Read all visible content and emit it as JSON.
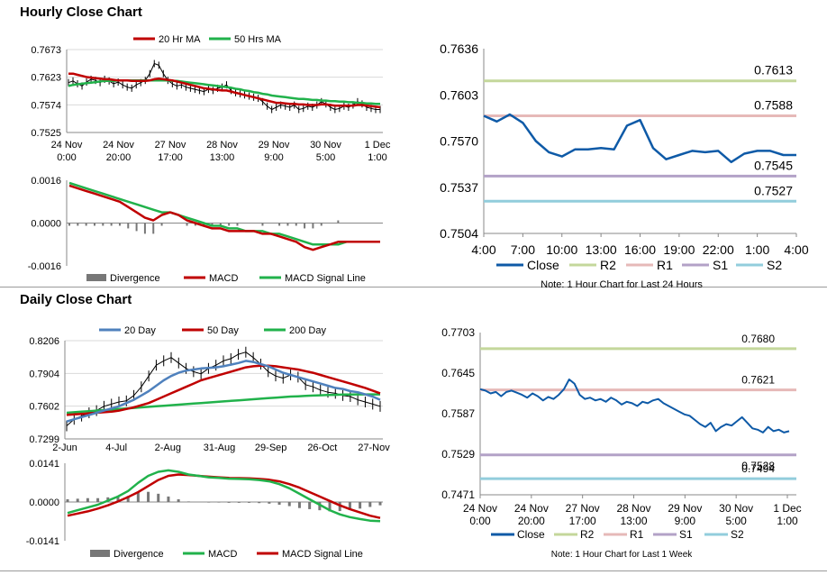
{
  "sections": {
    "hourly_title": "Hourly Close Chart",
    "daily_title": "Daily Close Chart"
  },
  "colors": {
    "red": "#c00000",
    "green": "#21b24b",
    "blue": "#4f81bd",
    "close": "#0e5aa7",
    "r2": "#c4d79b",
    "r1": "#e6b9b8",
    "s1": "#b3a2c7",
    "s2": "#92cddc",
    "div": "#777777"
  },
  "chart_data": [
    {
      "id": "hourly_price",
      "type": "line",
      "ylim": [
        0.7525,
        0.7673
      ],
      "yticks": [
        "0.7673",
        "0.7623",
        "0.7574",
        "0.7525"
      ],
      "xticks": [
        [
          "24 Nov",
          "0:00"
        ],
        [
          "24 Nov",
          "20:00"
        ],
        [
          "27 Nov",
          "17:00"
        ],
        [
          "28 Nov",
          "13:00"
        ],
        [
          "29 Nov",
          "9:00"
        ],
        [
          "30 Nov",
          "5:00"
        ],
        [
          "1 Dec",
          "1:00"
        ]
      ],
      "legend": [
        "20 Hr MA",
        "50 Hrs MA"
      ],
      "ohlc_close": [
        0.7614,
        0.7617,
        0.7612,
        0.7608,
        0.7615,
        0.762,
        0.7618,
        0.7614,
        0.762,
        0.7617,
        0.7612,
        0.7615,
        0.761,
        0.7606,
        0.7604,
        0.761,
        0.7614,
        0.7618,
        0.763,
        0.7648,
        0.7645,
        0.763,
        0.7618,
        0.7612,
        0.7608,
        0.761,
        0.7606,
        0.7604,
        0.7602,
        0.76,
        0.7598,
        0.7602,
        0.76,
        0.7604,
        0.7606,
        0.761,
        0.76,
        0.7596,
        0.7594,
        0.7592,
        0.759,
        0.7588,
        0.7586,
        0.758,
        0.7572,
        0.7566,
        0.757,
        0.7574,
        0.7572,
        0.757,
        0.7574,
        0.7566,
        0.7568,
        0.7572,
        0.757,
        0.7574,
        0.758,
        0.7576,
        0.757,
        0.7566,
        0.7568,
        0.7572,
        0.757,
        0.7574,
        0.758,
        0.7576,
        0.757,
        0.7568,
        0.7566,
        0.7566
      ],
      "ma20": [
        0.763,
        0.763,
        0.7628,
        0.7626,
        0.7624,
        0.7623,
        0.7622,
        0.7621,
        0.762,
        0.762,
        0.7619,
        0.7618,
        0.7618,
        0.7618,
        0.7617,
        0.7617,
        0.7617,
        0.7617,
        0.7618,
        0.762,
        0.7621,
        0.762,
        0.7619,
        0.7618,
        0.7616,
        0.7614,
        0.7612,
        0.761,
        0.7608,
        0.7606,
        0.7604,
        0.7603,
        0.7602,
        0.7601,
        0.76,
        0.76,
        0.7598,
        0.7596,
        0.7594,
        0.7592,
        0.759,
        0.7588,
        0.7586,
        0.7584,
        0.7582,
        0.758,
        0.7578,
        0.7578,
        0.7577,
        0.7576,
        0.7576,
        0.7575,
        0.7575,
        0.7574,
        0.7574,
        0.7574,
        0.7575,
        0.7575,
        0.7574,
        0.7573,
        0.7573,
        0.7573,
        0.7573,
        0.7573,
        0.7574,
        0.7574,
        0.7573,
        0.7572,
        0.7571,
        0.757
      ],
      "ma50": [
        0.7608,
        0.761,
        0.7611,
        0.7612,
        0.7613,
        0.7614,
        0.7615,
        0.7616,
        0.7617,
        0.7617,
        0.7617,
        0.7618,
        0.7618,
        0.7618,
        0.7618,
        0.7618,
        0.7618,
        0.7618,
        0.7618,
        0.7618,
        0.7618,
        0.7618,
        0.7618,
        0.7617,
        0.7617,
        0.7616,
        0.7615,
        0.7614,
        0.7613,
        0.7612,
        0.7611,
        0.761,
        0.7609,
        0.7608,
        0.7607,
        0.7606,
        0.7605,
        0.7603,
        0.7602,
        0.76,
        0.7599,
        0.7597,
        0.7596,
        0.7594,
        0.7593,
        0.7591,
        0.759,
        0.7589,
        0.7588,
        0.7587,
        0.7586,
        0.7585,
        0.7585,
        0.7584,
        0.7583,
        0.7583,
        0.7582,
        0.7582,
        0.7581,
        0.7581,
        0.758,
        0.758,
        0.7579,
        0.7579,
        0.7578,
        0.7578,
        0.7577,
        0.7577,
        0.7576,
        0.7576
      ]
    },
    {
      "id": "hourly_macd",
      "type": "line",
      "ylim": [
        -0.0016,
        0.0016
      ],
      "yticks": [
        "0.0016",
        "0.0000",
        "-0.0016"
      ],
      "legend": [
        "Divergence",
        "MACD",
        "MACD Signal Line"
      ],
      "macd": [
        0.0014,
        0.0013,
        0.0012,
        0.0011,
        0.001,
        0.0009,
        0.0008,
        0.0006,
        0.0004,
        0.0002,
        0.0001,
        0.0003,
        0.0004,
        0.0003,
        0.0001,
        0.0,
        -0.0001,
        -0.0002,
        -0.0002,
        -0.0003,
        -0.0003,
        -0.0003,
        -0.0003,
        -0.0004,
        -0.0004,
        -0.0005,
        -0.0006,
        -0.0007,
        -0.0009,
        -0.001,
        -0.0009,
        -0.0008,
        -0.0007,
        -0.0007,
        -0.0007,
        -0.0007,
        -0.0007,
        -0.0007
      ],
      "signal": [
        0.0015,
        0.0014,
        0.0013,
        0.0012,
        0.0011,
        0.001,
        0.0009,
        0.0008,
        0.0007,
        0.0006,
        0.0005,
        0.0004,
        0.0004,
        0.0003,
        0.0002,
        0.0001,
        0.0,
        -0.0001,
        -0.0001,
        -0.0002,
        -0.0002,
        -0.0003,
        -0.0003,
        -0.0003,
        -0.0004,
        -0.0004,
        -0.0005,
        -0.0006,
        -0.0007,
        -0.0008,
        -0.0008,
        -0.0008,
        -0.0008,
        -0.0007,
        -0.0007,
        -0.0007,
        -0.0007,
        -0.0007
      ],
      "divergence": [
        -0.0001,
        -0.0001,
        -0.0001,
        -0.0001,
        -0.0001,
        -0.0001,
        -0.0001,
        -0.0002,
        -0.0003,
        -0.0004,
        -0.0004,
        -0.0001,
        0.0,
        0.0,
        -0.0001,
        -0.0001,
        -0.0001,
        -0.0001,
        -0.0001,
        -0.0001,
        -0.0001,
        0.0,
        0.0,
        -0.0001,
        0.0,
        -0.0001,
        -0.0001,
        -0.0001,
        -0.0002,
        -0.0002,
        -0.0001,
        0.0,
        0.0001,
        0.0,
        0.0,
        0.0,
        0.0,
        0.0
      ]
    },
    {
      "id": "hourly_close",
      "type": "line",
      "ylim": [
        0.7504,
        0.7636
      ],
      "yticks": [
        "0.7636",
        "0.7603",
        "0.7570",
        "0.7537",
        "0.7504"
      ],
      "xticks": [
        "4:00",
        "7:00",
        "10:00",
        "13:00",
        "16:00",
        "19:00",
        "22:00",
        "1:00",
        "4:00"
      ],
      "legend": [
        "Close",
        "R2",
        "R1",
        "S1",
        "S2"
      ],
      "note": "Note: 1 Hour Chart for Last 24 Hours",
      "levels": [
        {
          "key": "r2",
          "value": 0.7613,
          "label": "0.7613"
        },
        {
          "key": "r1",
          "value": 0.7588,
          "label": "0.7588"
        },
        {
          "key": "s1",
          "value": 0.7545,
          "label": "0.7545"
        },
        {
          "key": "s2",
          "value": 0.7527,
          "label": "0.7527"
        }
      ],
      "close": [
        0.7588,
        0.7584,
        0.7589,
        0.7583,
        0.757,
        0.7562,
        0.7559,
        0.7564,
        0.7564,
        0.7565,
        0.7564,
        0.7581,
        0.7585,
        0.7565,
        0.7557,
        0.756,
        0.7563,
        0.7562,
        0.7563,
        0.7555,
        0.7561,
        0.7563,
        0.7563,
        0.756,
        0.756
      ]
    },
    {
      "id": "daily_price",
      "type": "line",
      "ylim": [
        0.7299,
        0.8206
      ],
      "yticks": [
        "0.8206",
        "0.7904",
        "0.7602",
        "0.7299"
      ],
      "xticks": [
        "2-Jun",
        "4-Jul",
        "2-Aug",
        "31-Aug",
        "29-Sep",
        "26-Oct",
        "27-Nov"
      ],
      "legend": [
        "20 Day",
        "50 Day",
        "200 Day"
      ],
      "ohlc_close": [
        0.742,
        0.748,
        0.751,
        0.754,
        0.756,
        0.76,
        0.762,
        0.764,
        0.765,
        0.77,
        0.778,
        0.788,
        0.798,
        0.802,
        0.805,
        0.8,
        0.795,
        0.792,
        0.79,
        0.795,
        0.798,
        0.802,
        0.804,
        0.808,
        0.81,
        0.805,
        0.799,
        0.792,
        0.788,
        0.786,
        0.789,
        0.787,
        0.78,
        0.778,
        0.775,
        0.773,
        0.772,
        0.77,
        0.769,
        0.766,
        0.764,
        0.762,
        0.76
      ],
      "ma20": [
        0.746,
        0.748,
        0.75,
        0.752,
        0.754,
        0.756,
        0.758,
        0.76,
        0.763,
        0.766,
        0.77,
        0.774,
        0.779,
        0.784,
        0.788,
        0.791,
        0.793,
        0.794,
        0.795,
        0.7955,
        0.796,
        0.797,
        0.7985,
        0.8,
        0.802,
        0.801,
        0.799,
        0.797,
        0.794,
        0.791,
        0.789,
        0.787,
        0.785,
        0.783,
        0.781,
        0.779,
        0.777,
        0.776,
        0.774,
        0.773,
        0.771,
        0.769,
        0.766
      ],
      "ma50": [
        0.752,
        0.7525,
        0.753,
        0.7535,
        0.754,
        0.7545,
        0.755,
        0.756,
        0.7575,
        0.759,
        0.761,
        0.763,
        0.766,
        0.769,
        0.772,
        0.775,
        0.778,
        0.781,
        0.784,
        0.786,
        0.788,
        0.79,
        0.792,
        0.794,
        0.796,
        0.797,
        0.7975,
        0.7975,
        0.797,
        0.796,
        0.795,
        0.794,
        0.7925,
        0.791,
        0.789,
        0.787,
        0.785,
        0.783,
        0.781,
        0.779,
        0.777,
        0.7745,
        0.772
      ],
      "ma200": [
        0.754,
        0.7545,
        0.755,
        0.7555,
        0.756,
        0.7565,
        0.757,
        0.7575,
        0.758,
        0.7585,
        0.759,
        0.7595,
        0.76,
        0.7605,
        0.761,
        0.7615,
        0.762,
        0.7625,
        0.763,
        0.7635,
        0.764,
        0.7645,
        0.765,
        0.7655,
        0.766,
        0.7665,
        0.767,
        0.7675,
        0.768,
        0.7685,
        0.769,
        0.7693,
        0.7696,
        0.7699,
        0.7702,
        0.7704,
        0.7706,
        0.7708,
        0.7709,
        0.771,
        0.771,
        0.771,
        0.771
      ]
    },
    {
      "id": "daily_macd",
      "type": "line",
      "ylim": [
        -0.0141,
        0.0141
      ],
      "yticks": [
        "0.0141",
        "0.0000",
        "-0.0141"
      ],
      "legend": [
        "Divergence",
        "MACD",
        "MACD Signal Line"
      ],
      "macd": [
        -0.004,
        -0.003,
        -0.002,
        -0.001,
        0.0005,
        0.002,
        0.004,
        0.007,
        0.0095,
        0.011,
        0.0115,
        0.011,
        0.01,
        0.0095,
        0.009,
        0.0088,
        0.0085,
        0.0084,
        0.0083,
        0.008,
        0.0075,
        0.0065,
        0.005,
        0.003,
        0.001,
        -0.001,
        -0.003,
        -0.0045,
        -0.0055,
        -0.0062,
        -0.0068,
        -0.007
      ],
      "signal": [
        -0.005,
        -0.0042,
        -0.0034,
        -0.0024,
        -0.0012,
        0.0002,
        0.0018,
        0.0036,
        0.0058,
        0.008,
        0.0095,
        0.01,
        0.0098,
        0.0095,
        0.0092,
        0.009,
        0.0088,
        0.0087,
        0.0086,
        0.0084,
        0.0081,
        0.0075,
        0.0065,
        0.0052,
        0.0036,
        0.002,
        0.0004,
        -0.0012,
        -0.0026,
        -0.0038,
        -0.005,
        -0.0058
      ],
      "divergence": [
        0.001,
        0.0012,
        0.0014,
        0.0014,
        0.0017,
        0.0018,
        0.0022,
        0.0034,
        0.0037,
        0.003,
        0.002,
        0.001,
        0.0002,
        0.0,
        -0.0002,
        -0.0002,
        -0.0003,
        -0.0003,
        -0.0003,
        -0.0004,
        -0.0006,
        -0.001,
        -0.0015,
        -0.0022,
        -0.0026,
        -0.003,
        -0.0034,
        -0.0033,
        -0.0029,
        -0.0024,
        -0.0018,
        -0.0012
      ]
    },
    {
      "id": "weekly_close",
      "type": "line",
      "ylim": [
        0.7471,
        0.7703
      ],
      "yticks": [
        "0.7703",
        "0.7645",
        "0.7587",
        "0.7529",
        "0.7471"
      ],
      "xticks": [
        [
          "24 Nov",
          "0:00"
        ],
        [
          "24 Nov",
          "20:00"
        ],
        [
          "27 Nov",
          "17:00"
        ],
        [
          "28 Nov",
          "13:00"
        ],
        [
          "29 Nov",
          "9:00"
        ],
        [
          "30 Nov",
          "5:00"
        ],
        [
          "1 Dec",
          "1:00"
        ]
      ],
      "legend": [
        "Close",
        "R2",
        "R1",
        "S1",
        "S2"
      ],
      "note": "Note: 1 Hour Chart for Last 1 Week",
      "levels": [
        {
          "key": "r2",
          "value": 0.768,
          "label": "0.7680"
        },
        {
          "key": "r1",
          "value": 0.7621,
          "label": "0.7621"
        },
        {
          "key": "s1",
          "value": 0.7528,
          "label": "0.7528"
        },
        {
          "key": "s2",
          "value": 0.7494,
          "label": "0.7494"
        }
      ],
      "close": [
        0.7622,
        0.762,
        0.7616,
        0.7618,
        0.7612,
        0.7618,
        0.762,
        0.7617,
        0.7614,
        0.761,
        0.7616,
        0.7612,
        0.7606,
        0.7611,
        0.7608,
        0.7614,
        0.7622,
        0.7636,
        0.763,
        0.7614,
        0.7608,
        0.761,
        0.7606,
        0.7608,
        0.7604,
        0.761,
        0.7606,
        0.76,
        0.7604,
        0.7602,
        0.7598,
        0.7604,
        0.7602,
        0.7606,
        0.7608,
        0.7602,
        0.7598,
        0.7594,
        0.759,
        0.7586,
        0.7584,
        0.7578,
        0.7572,
        0.7568,
        0.7574,
        0.7562,
        0.7568,
        0.7572,
        0.757,
        0.7576,
        0.7582,
        0.7574,
        0.7566,
        0.7564,
        0.756,
        0.7568,
        0.7562,
        0.7564,
        0.756,
        0.7562
      ]
    }
  ]
}
